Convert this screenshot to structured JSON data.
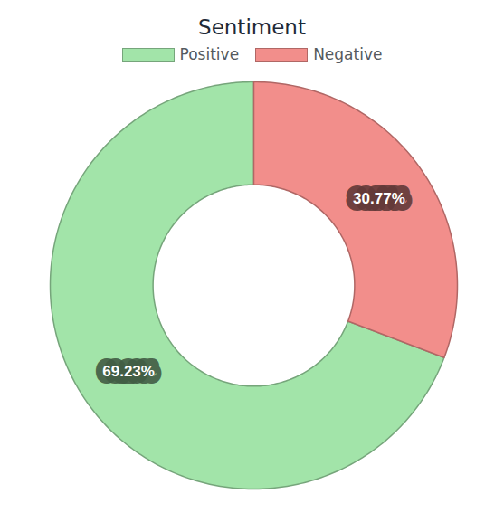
{
  "chart_data": {
    "type": "donut",
    "title": "Sentiment",
    "categories": [
      "Positive",
      "Negative"
    ],
    "values": [
      69.23,
      30.77
    ],
    "value_labels": [
      "69.23%",
      "30.77%"
    ],
    "colors": [
      "#a2e4a9",
      "#f28e8b"
    ],
    "legend": "top",
    "data_labels": true
  }
}
